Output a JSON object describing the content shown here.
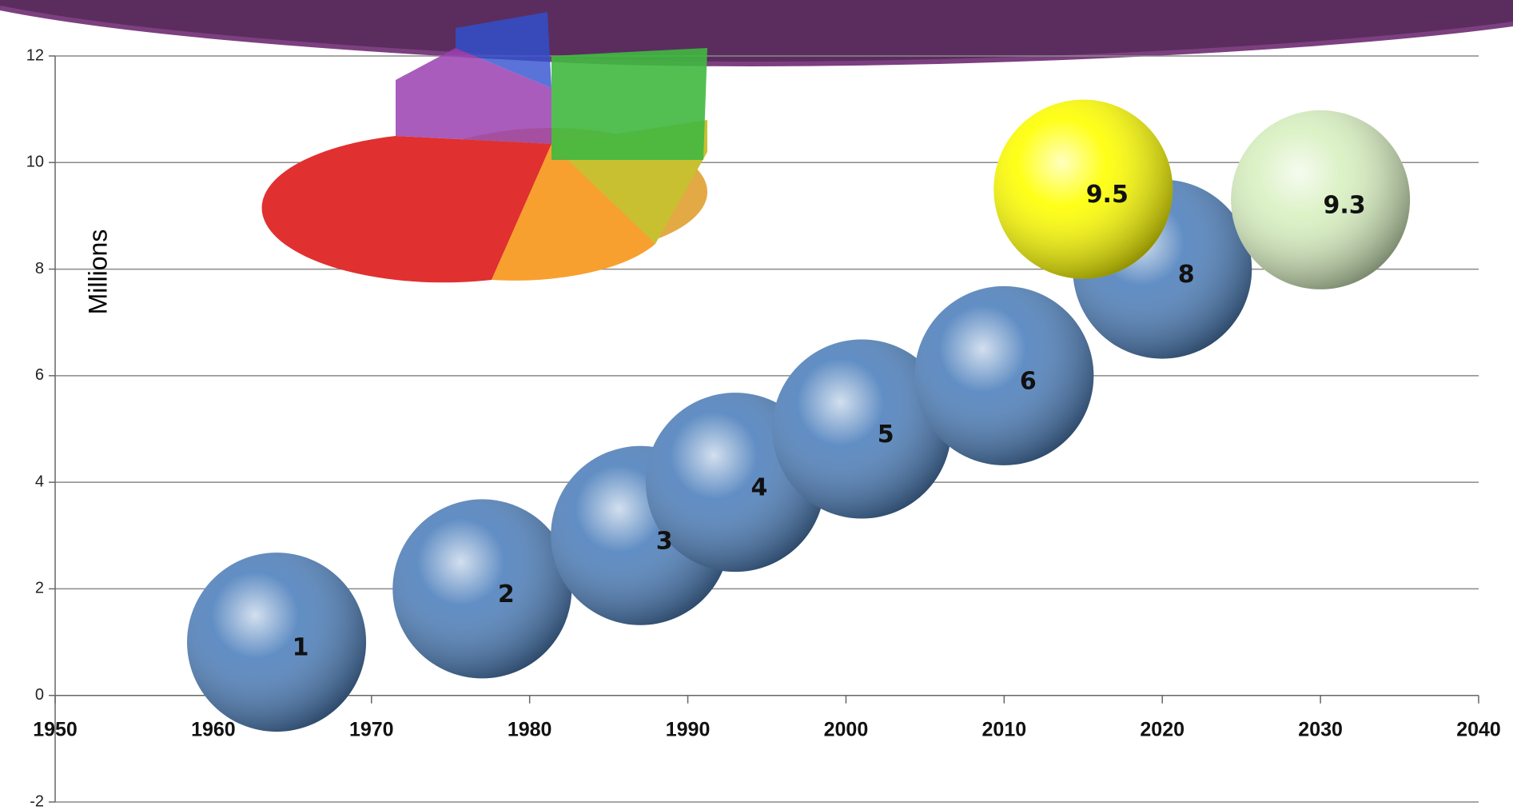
{
  "chart_data": {
    "type": "bubble",
    "y_label": "Millions",
    "xlim": [
      1950,
      2040
    ],
    "xticks": [
      1950,
      1960,
      1970,
      1980,
      1990,
      2000,
      2010,
      2020,
      2030,
      2040
    ],
    "ylim": [
      -2,
      12
    ],
    "yticks": [
      -2,
      0,
      2,
      4,
      6,
      8,
      10,
      12
    ],
    "grid": true,
    "series": [
      {
        "color": "#4f81bd",
        "x": [
          1964,
          1977,
          1987,
          1993,
          2001,
          2010,
          2020
        ],
        "values": [
          1,
          2,
          3,
          4,
          5,
          6,
          8
        ]
      },
      {
        "color": "#ffff00",
        "x": [
          2015
        ],
        "values": [
          9.5
        ]
      },
      {
        "color": "#d8f0c0",
        "x": [
          2030
        ],
        "values": [
          9.3
        ]
      }
    ]
  }
}
